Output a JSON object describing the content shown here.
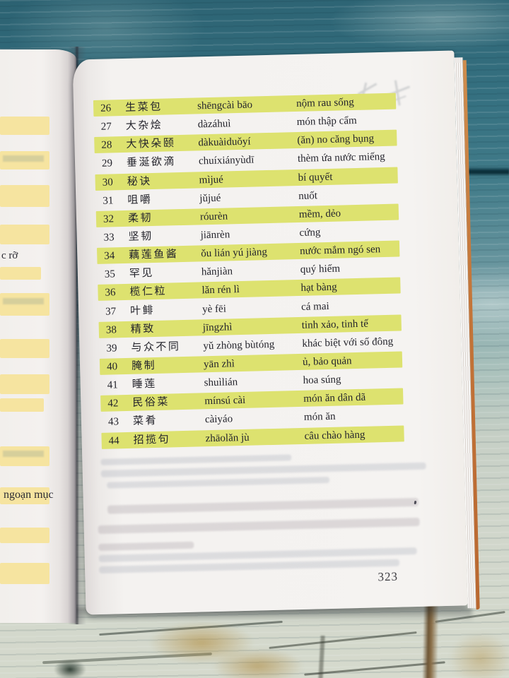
{
  "book": {
    "page_number": "323",
    "left_page_fragments": {
      "top_text": "c rỡ",
      "bottom_text": "ngoạn mục"
    }
  },
  "vocab_table": {
    "rows": [
      {
        "no": "26",
        "hanzi": "生菜包",
        "pinyin": "shēngcài bāo",
        "viet": "nộm rau sống",
        "highlight": true
      },
      {
        "no": "27",
        "hanzi": "大杂烩",
        "pinyin": "dàzáhuì",
        "viet": "món thập cẩm",
        "highlight": false
      },
      {
        "no": "28",
        "hanzi": "大快朵颐",
        "pinyin": "dàkuàiduǒyí",
        "viet": "(ăn) no căng bụng",
        "highlight": true
      },
      {
        "no": "29",
        "hanzi": "垂涎欲滴",
        "pinyin": "chuíxiányùdī",
        "viet": "thèm ứa nước miếng",
        "highlight": false
      },
      {
        "no": "30",
        "hanzi": "秘诀",
        "pinyin": "mìjué",
        "viet": "bí quyết",
        "highlight": true
      },
      {
        "no": "31",
        "hanzi": "咀嚼",
        "pinyin": "jǔjué",
        "viet": "nuốt",
        "highlight": false
      },
      {
        "no": "32",
        "hanzi": "柔韧",
        "pinyin": "róurèn",
        "viet": "mềm, dẻo",
        "highlight": true
      },
      {
        "no": "33",
        "hanzi": "坚韧",
        "pinyin": "jiānrèn",
        "viet": "cứng",
        "highlight": false
      },
      {
        "no": "34",
        "hanzi": "藕莲鱼酱",
        "pinyin": "ǒu lián yú jiàng",
        "viet": "nước mắm ngó sen",
        "highlight": true
      },
      {
        "no": "35",
        "hanzi": "罕见",
        "pinyin": "hǎnjiàn",
        "viet": "quý hiếm",
        "highlight": false
      },
      {
        "no": "36",
        "hanzi": "榄仁粒",
        "pinyin": "lǎn rén lì",
        "viet": "hạt bàng",
        "highlight": true
      },
      {
        "no": "37",
        "hanzi": "叶鲱",
        "pinyin": "yè fēi",
        "viet": "cá mai",
        "highlight": false
      },
      {
        "no": "38",
        "hanzi": "精致",
        "pinyin": "jīngzhì",
        "viet": "tinh xảo, tinh tế",
        "highlight": true
      },
      {
        "no": "39",
        "hanzi": "与众不同",
        "pinyin": "yǔ zhòng bùtóng",
        "viet": "khác biệt với số đông",
        "highlight": false
      },
      {
        "no": "40",
        "hanzi": "腌制",
        "pinyin": "yān zhì",
        "viet": "ủ, bảo quản",
        "highlight": true
      },
      {
        "no": "41",
        "hanzi": "睡莲",
        "pinyin": "shuìlián",
        "viet": "hoa súng",
        "highlight": false
      },
      {
        "no": "42",
        "hanzi": "民俗菜",
        "pinyin": "mínsú cài",
        "viet": "món ăn dân dã",
        "highlight": true
      },
      {
        "no": "43",
        "hanzi": "菜肴",
        "pinyin": "càiyáo",
        "viet": "món ăn",
        "highlight": false
      },
      {
        "no": "44",
        "hanzi": "招揽句",
        "pinyin": "zhāolǎn jù",
        "viet": "câu chào hàng",
        "highlight": true
      }
    ]
  },
  "colors": {
    "highlight_green": "#dde26f",
    "left_highlight_yellow": "#f6e4a0",
    "page_white": "#f4f2f0",
    "wood_teal_dark": "#2c6272",
    "wood_light": "#d0d6cb",
    "page_edge_orange": "#c37438",
    "table_text": "#24242c"
  }
}
